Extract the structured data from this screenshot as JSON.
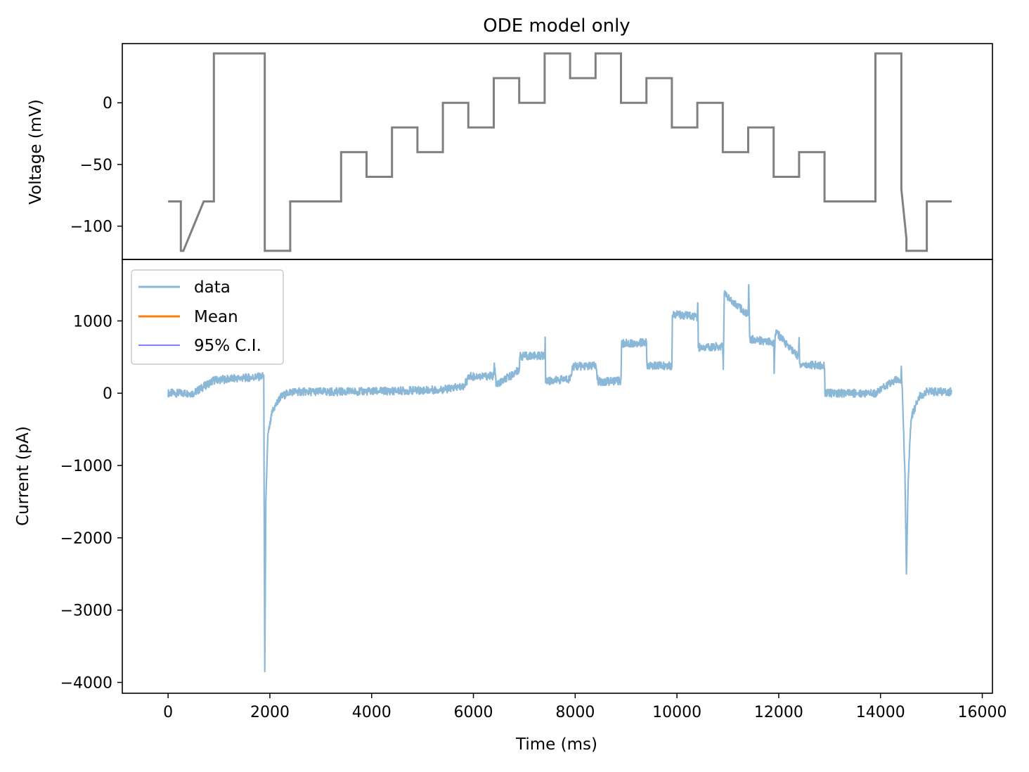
{
  "chart_data": [
    {
      "type": "line",
      "panel": "top",
      "title": "ODE model only",
      "ylabel": "Voltage (mV)",
      "xlim": [
        -900,
        16200
      ],
      "ylim": [
        -127,
        48
      ],
      "yticks": [
        0,
        -50,
        -100
      ],
      "ytick_labels": [
        "0",
        "−50",
        "−100"
      ],
      "grid": false,
      "series": [
        {
          "color": "#808080",
          "x": [
            0,
            250,
            250,
            300,
            700,
            900,
            900,
            1900,
            1900,
            2400,
            2400,
            3400,
            3400,
            3900,
            3900,
            4400,
            4400,
            4900,
            4900,
            5400,
            5400,
            5900,
            5900,
            6400,
            6400,
            6900,
            6900,
            7400,
            7400,
            7900,
            7900,
            8400,
            8400,
            8900,
            8900,
            9400,
            9400,
            9900,
            9900,
            10400,
            10400,
            10900,
            10900,
            11400,
            11400,
            11900,
            11900,
            12400,
            12400,
            12900,
            12900,
            13900,
            13900,
            14410,
            14410,
            14510,
            14510,
            14910,
            14910,
            15400
          ],
          "y": [
            -80,
            -80,
            -120,
            -120,
            -80,
            -80,
            40,
            40,
            -120,
            -120,
            -80,
            -80,
            -40,
            -40,
            -60,
            -60,
            -20,
            -20,
            -40,
            -40,
            0,
            0,
            -20,
            -20,
            20,
            20,
            0,
            0,
            40,
            40,
            20,
            20,
            40,
            40,
            0,
            0,
            20,
            20,
            -20,
            -20,
            0,
            0,
            -40,
            -40,
            -20,
            -20,
            -60,
            -60,
            -40,
            -40,
            -80,
            -80,
            40,
            40,
            -70,
            -110,
            -120,
            -120,
            -80,
            -80
          ]
        }
      ]
    },
    {
      "type": "line",
      "panel": "bottom",
      "xlabel": "Time (ms)",
      "ylabel": "Current (pA)",
      "xlim": [
        -900,
        16200
      ],
      "ylim": [
        -4150,
        1850
      ],
      "xticks": [
        0,
        2000,
        4000,
        6000,
        8000,
        10000,
        12000,
        14000,
        16000
      ],
      "xtick_labels": [
        "0",
        "2000",
        "4000",
        "6000",
        "8000",
        "10000",
        "12000",
        "14000",
        "16000"
      ],
      "yticks": [
        1000,
        0,
        -1000,
        -2000,
        -3000,
        -4000
      ],
      "ytick_labels": [
        "1000",
        "0",
        "−1000",
        "−2000",
        "−3000",
        "−4000"
      ],
      "grid": false,
      "legend": {
        "position": "top-left",
        "entries": [
          {
            "label": "data",
            "color": "#8cb8d8"
          },
          {
            "label": "Mean",
            "color": "#ff7f0e"
          },
          {
            "label": "95% C.I.",
            "color": "#0000ff"
          }
        ]
      },
      "series": [
        {
          "name": "data",
          "color": "#8cb8d8",
          "x": [
            0,
            450,
            500,
            900,
            1850,
            1880,
            1900,
            1920,
            1960,
            2050,
            2200,
            2400,
            3400,
            4400,
            5400,
            5800,
            5920,
            6400,
            6410,
            6450,
            6900,
            6910,
            7400,
            7410,
            7420,
            7500,
            7900,
            7950,
            8400,
            8450,
            8900,
            8910,
            9400,
            9410,
            9900,
            9910,
            10400,
            10410,
            10420,
            10900,
            10910,
            10930,
            11000,
            11400,
            11410,
            11430,
            11500,
            11900,
            11910,
            11930,
            12100,
            12390,
            12400,
            12410,
            12900,
            12910,
            13900,
            14100,
            14350,
            14400,
            14410,
            14480,
            14510,
            14540,
            14600,
            14750,
            14900,
            15400
          ],
          "y": [
            0,
            0,
            0,
            180,
            230,
            250,
            -3850,
            -1500,
            -600,
            -250,
            -60,
            20,
            20,
            30,
            50,
            90,
            230,
            240,
            400,
            110,
            320,
            510,
            520,
            720,
            170,
            170,
            200,
            370,
            380,
            160,
            170,
            690,
            700,
            380,
            380,
            1100,
            1050,
            1250,
            630,
            650,
            330,
            1380,
            1330,
            1080,
            1500,
            760,
            740,
            700,
            300,
            860,
            720,
            500,
            770,
            400,
            380,
            0,
            0,
            100,
            200,
            190,
            400,
            -1100,
            -2500,
            -1300,
            -350,
            -60,
            20,
            20
          ]
        }
      ]
    }
  ]
}
